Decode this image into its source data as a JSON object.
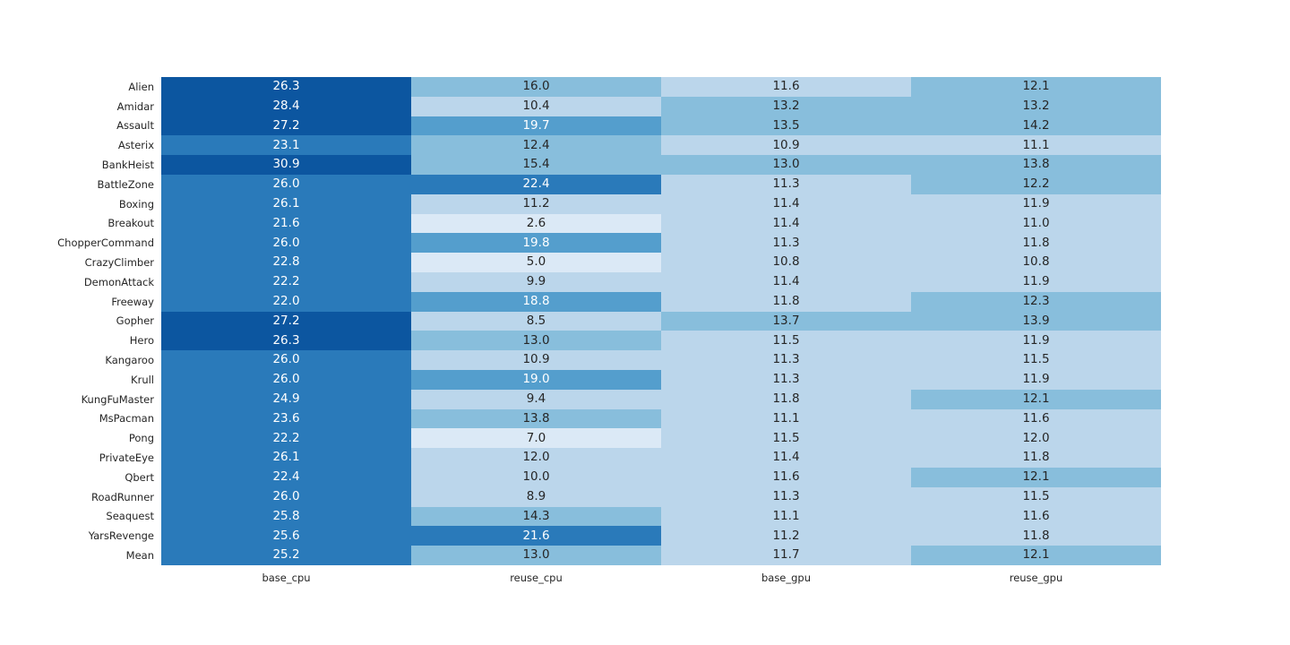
{
  "chart_data": {
    "type": "heatmap",
    "title": "",
    "xlabel": "",
    "ylabel": "",
    "legend": "none",
    "grid": false,
    "columns": [
      "base_cpu",
      "reuse_cpu",
      "base_gpu",
      "reuse_gpu"
    ],
    "rows": [
      {
        "label": "Alien",
        "values": [
          26.3,
          16.0,
          11.6,
          12.1
        ]
      },
      {
        "label": "Amidar",
        "values": [
          28.4,
          10.4,
          13.2,
          13.2
        ]
      },
      {
        "label": "Assault",
        "values": [
          27.2,
          19.7,
          13.5,
          14.2
        ]
      },
      {
        "label": "Asterix",
        "values": [
          23.1,
          12.4,
          10.9,
          11.1
        ]
      },
      {
        "label": "BankHeist",
        "values": [
          30.9,
          15.4,
          13.0,
          13.8
        ]
      },
      {
        "label": "BattleZone",
        "values": [
          26.0,
          22.4,
          11.3,
          12.2
        ]
      },
      {
        "label": "Boxing",
        "values": [
          26.1,
          11.2,
          11.4,
          11.9
        ]
      },
      {
        "label": "Breakout",
        "values": [
          21.6,
          2.6,
          11.4,
          11.0
        ]
      },
      {
        "label": "ChopperCommand",
        "values": [
          26.0,
          19.8,
          11.3,
          11.8
        ]
      },
      {
        "label": "CrazyClimber",
        "values": [
          22.8,
          5.0,
          10.8,
          10.8
        ]
      },
      {
        "label": "DemonAttack",
        "values": [
          22.2,
          9.9,
          11.4,
          11.9
        ]
      },
      {
        "label": "Freeway",
        "values": [
          22.0,
          18.8,
          11.8,
          12.3
        ]
      },
      {
        "label": "Gopher",
        "values": [
          27.2,
          8.5,
          13.7,
          13.9
        ]
      },
      {
        "label": "Hero",
        "values": [
          26.3,
          13.0,
          11.5,
          11.9
        ]
      },
      {
        "label": "Kangaroo",
        "values": [
          26.0,
          10.9,
          11.3,
          11.5
        ]
      },
      {
        "label": "Krull",
        "values": [
          26.0,
          19.0,
          11.3,
          11.9
        ]
      },
      {
        "label": "KungFuMaster",
        "values": [
          24.9,
          9.4,
          11.8,
          12.1
        ]
      },
      {
        "label": "MsPacman",
        "values": [
          23.6,
          13.8,
          11.1,
          11.6
        ]
      },
      {
        "label": "Pong",
        "values": [
          22.2,
          7.0,
          11.5,
          12.0
        ]
      },
      {
        "label": "PrivateEye",
        "values": [
          26.1,
          12.0,
          11.4,
          11.8
        ]
      },
      {
        "label": "Qbert",
        "values": [
          22.4,
          10.0,
          11.6,
          12.1
        ]
      },
      {
        "label": "RoadRunner",
        "values": [
          26.0,
          8.9,
          11.3,
          11.5
        ]
      },
      {
        "label": "Seaquest",
        "values": [
          25.8,
          14.3,
          11.1,
          11.6
        ]
      },
      {
        "label": "YarsRevenge",
        "values": [
          25.6,
          21.6,
          11.2,
          11.8
        ]
      },
      {
        "label": "Mean",
        "values": [
          25.2,
          13.0,
          11.7,
          12.1
        ]
      }
    ],
    "vmin": 2.6,
    "vmax": 30.9,
    "n_color_bins": 6,
    "palette": [
      {
        "bg": "#dbe9f6",
        "fg": "#262626"
      },
      {
        "bg": "#bbd6eb",
        "fg": "#262626"
      },
      {
        "bg": "#88bedc",
        "fg": "#262626"
      },
      {
        "bg": "#549ecd",
        "fg": "#ffffff"
      },
      {
        "bg": "#2a7aba",
        "fg": "#ffffff"
      },
      {
        "bg": "#0c56a0",
        "fg": "#ffffff"
      }
    ],
    "value_format_decimals": 1
  }
}
